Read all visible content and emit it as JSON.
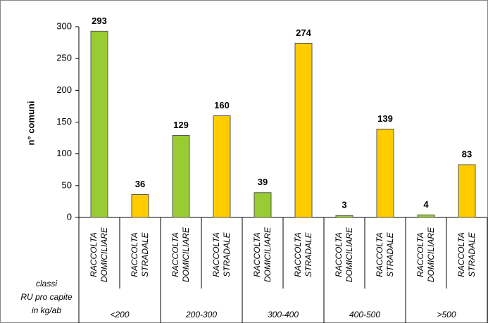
{
  "chart_data": {
    "type": "bar",
    "y_label": "n° comuni",
    "x_label": [
      "classi",
      "RU pro capite",
      "in kg/ab"
    ],
    "categories": [
      "<200",
      "200-300",
      "300-400",
      "400-500",
      ">500"
    ],
    "series": [
      {
        "name": "RACCOLTA DOMICILIARE",
        "color": "#99cc33",
        "values": [
          293,
          129,
          39,
          3,
          4
        ]
      },
      {
        "name": "RACCOLTA STRADALE",
        "color": "#ffcc00",
        "values": [
          36,
          160,
          274,
          139,
          83
        ]
      }
    ],
    "ylim": [
      0,
      300
    ],
    "yticks": [
      0,
      50,
      100,
      150,
      200,
      250,
      300
    ]
  }
}
